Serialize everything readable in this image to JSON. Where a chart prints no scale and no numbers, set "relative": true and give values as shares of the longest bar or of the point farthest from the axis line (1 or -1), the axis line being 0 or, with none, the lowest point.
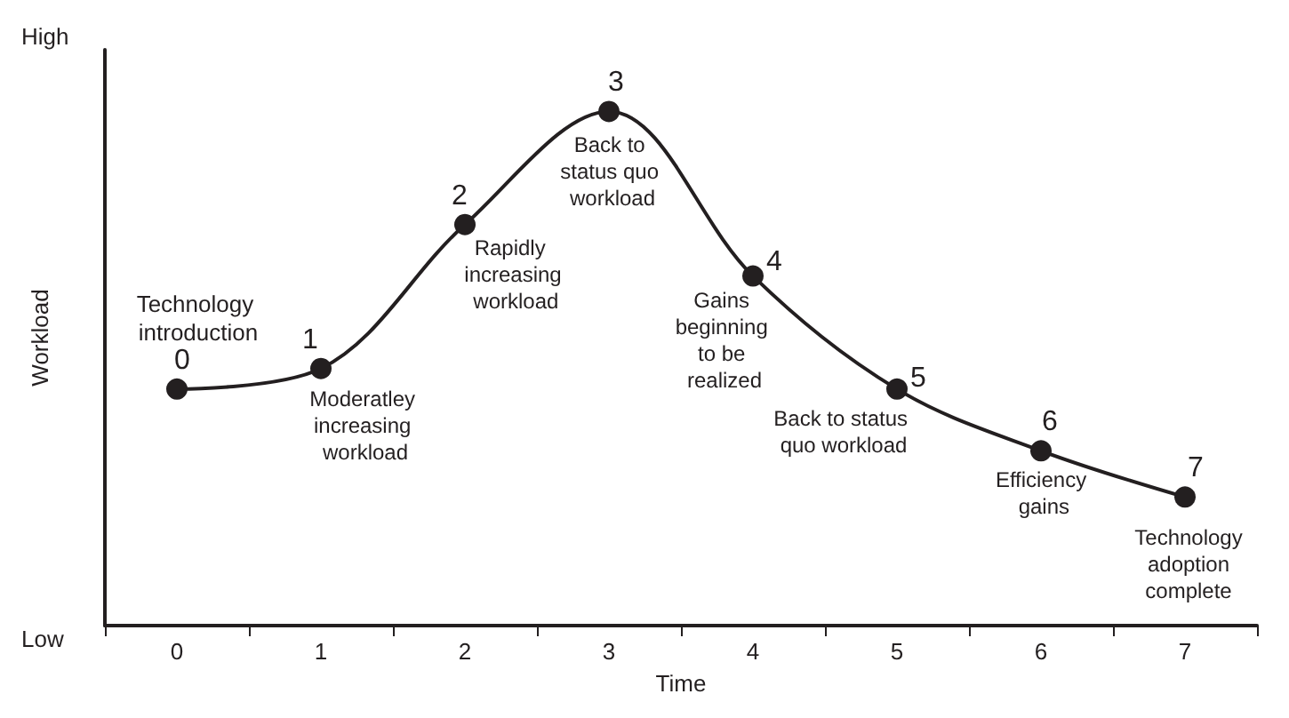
{
  "chart_data": {
    "type": "line",
    "relative": true,
    "xlabel": "Time",
    "ylabel": "Workload",
    "categories": [
      "0",
      "1",
      "2",
      "3",
      "4",
      "5",
      "6",
      "7"
    ],
    "series": [
      {
        "color": "#231f20",
        "values": [
          0.46,
          0.5,
          0.78,
          1,
          0.68,
          0.46,
          0.34,
          0.25
        ]
      }
    ],
    "marker": "circle",
    "line_style": "solid",
    "annotations": [
      "High",
      "Low",
      {
        "text": "0",
        "x": "0",
        "y": 0.46
      },
      {
        "text": "Technology introduction",
        "x": "0",
        "y": 0.46
      },
      {
        "text": "1",
        "x": "1",
        "y": 0.5
      },
      {
        "text": "Moderatley increasing workload",
        "x": "1",
        "y": 0.5
      },
      {
        "text": "2",
        "x": "2",
        "y": 0.78
      },
      {
        "text": "Rapidly increasing workload",
        "x": "2",
        "y": 0.78
      },
      {
        "text": "3",
        "x": "3",
        "y": 1
      },
      {
        "text": "Back to status quo workload",
        "x": "3",
        "y": 1
      },
      {
        "text": "4",
        "x": "4",
        "y": 0.68
      },
      {
        "text": "Gains beginning to be realized",
        "x": "4",
        "y": 0.68
      },
      {
        "text": "5",
        "x": "5",
        "y": 0.46
      },
      {
        "text": "Back to status quo workload",
        "x": "5",
        "y": 0.46
      },
      {
        "text": "6",
        "x": "6",
        "y": 0.34
      },
      {
        "text": "Efficiency gains",
        "x": "6",
        "y": 0.34
      },
      {
        "text": "7",
        "x": "7",
        "y": 0.25
      },
      {
        "text": "Technology adoption complete",
        "x": "7",
        "y": 0.25
      }
    ]
  }
}
